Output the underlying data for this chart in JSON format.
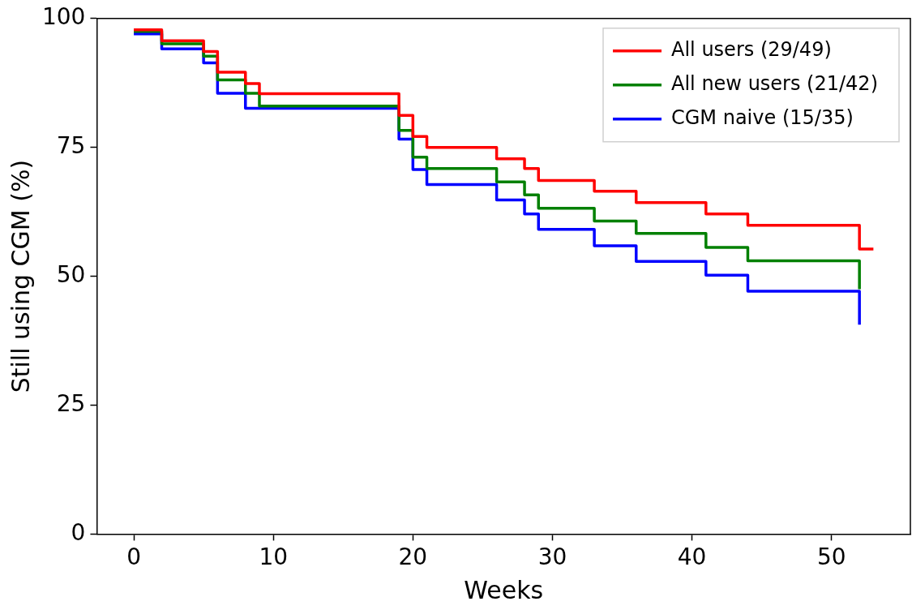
{
  "chart_data": {
    "type": "step",
    "xlabel": "Weeks",
    "ylabel": "Still using CGM (%)",
    "xlim": [
      -2.65,
      55.65
    ],
    "xticks": [
      0,
      10,
      20,
      30,
      40,
      50
    ],
    "ylim": [
      0,
      100
    ],
    "yticks": [
      0,
      25,
      50,
      75,
      100
    ],
    "grid": false,
    "legend": "top right",
    "marker": "none",
    "line_style": "solid",
    "series": [
      {
        "name": "All users (29/49)",
        "color": "#ff0000",
        "x": [
          0,
          2,
          5,
          6,
          8,
          9,
          19,
          20,
          21,
          26,
          28,
          29,
          33,
          36,
          41,
          44,
          52,
          53
        ],
        "values": [
          97.8,
          95.7,
          93.6,
          89.6,
          87.4,
          85.4,
          81.2,
          77.1,
          75.0,
          72.8,
          70.9,
          68.6,
          66.5,
          64.3,
          62.1,
          59.9,
          55.3,
          55.3
        ]
      },
      {
        "name": "All new users (21/42)",
        "color": "#008000",
        "x": [
          0,
          2,
          5,
          6,
          8,
          9,
          19,
          20,
          21,
          26,
          28,
          29,
          33,
          36,
          41,
          44,
          52
        ],
        "values": [
          97.5,
          95.1,
          92.7,
          88.1,
          85.5,
          83.0,
          78.3,
          73.1,
          70.9,
          68.3,
          65.8,
          63.2,
          60.7,
          58.3,
          55.6,
          53.0,
          47.5
        ]
      },
      {
        "name": "CGM naive (15/35)",
        "color": "#0000ff",
        "x": [
          0,
          2,
          5,
          6,
          8,
          19,
          20,
          21,
          26,
          28,
          29,
          33,
          36,
          41,
          44,
          52
        ],
        "values": [
          97.0,
          94.1,
          91.4,
          85.5,
          82.6,
          76.6,
          70.7,
          67.8,
          64.8,
          62.1,
          59.1,
          55.9,
          52.9,
          50.2,
          47.1,
          40.6
        ]
      }
    ]
  }
}
